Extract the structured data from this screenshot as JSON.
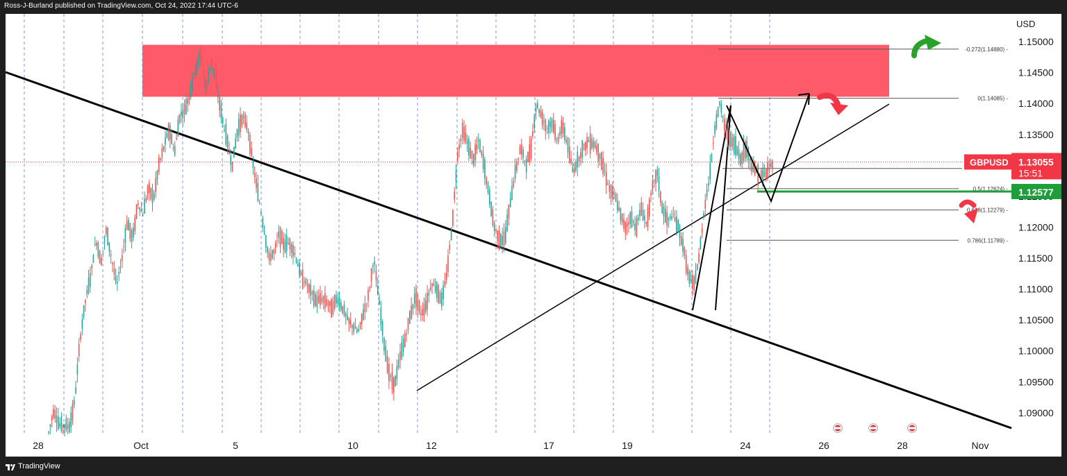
{
  "header": {
    "publisher_line": "Ross-J-Burland published on TradingView.com, Oct 24, 2022 17:44 UTC-6"
  },
  "footer": {
    "brand": "TradingView"
  },
  "chart_data": {
    "type": "candlestick",
    "symbol": "GBPUSD",
    "currency_label": "USD",
    "current_price": "1.13055",
    "countdown": "15:51",
    "support_price": "1.12577",
    "y_ticks": [
      "1.15000",
      "1.14500",
      "1.14000",
      "1.13500",
      "1.13000",
      "1.12500",
      "1.12000",
      "1.11500",
      "1.11000",
      "1.10500",
      "1.10000",
      "1.09500",
      "1.09000"
    ],
    "y_tick_values": [
      1.15,
      1.145,
      1.14,
      1.135,
      1.13,
      1.125,
      1.12,
      1.115,
      1.11,
      1.105,
      1.1,
      1.095,
      1.09
    ],
    "x_ticks": [
      "28",
      "Oct",
      "5",
      "10",
      "12",
      "17",
      "19",
      "24",
      "26",
      "28",
      "Nov"
    ],
    "y_range": [
      1.0865,
      1.1545
    ],
    "fib_levels": [
      {
        "label": "-0.272(1.14880)",
        "value": 1.1488
      },
      {
        "label": "0(1.14085)",
        "value": 1.14085
      },
      {
        "label": "0.5(1.12624)",
        "value": 1.12624
      },
      {
        "label": "0.618(1.12279)",
        "value": 1.12279
      },
      {
        "label": "0.786(1.11789)",
        "value": 1.11789
      }
    ],
    "resistance_zone": [
      1.1411,
      1.1495
    ],
    "price_path": [
      [
        0,
        1.0868
      ],
      [
        0.5,
        1.0905
      ],
      [
        1,
        1.088
      ],
      [
        2,
        1.0878
      ],
      [
        2.5,
        1.092
      ],
      [
        3,
        1.102
      ],
      [
        3.5,
        1.108
      ],
      [
        4,
        1.112
      ],
      [
        4.5,
        1.118
      ],
      [
        5,
        1.1145
      ],
      [
        5.5,
        1.1195
      ],
      [
        6,
        1.115
      ],
      [
        6.5,
        1.1105
      ],
      [
        7,
        1.115
      ],
      [
        7.5,
        1.121
      ],
      [
        8,
        1.118
      ],
      [
        8.5,
        1.124
      ],
      [
        9,
        1.122
      ],
      [
        9.5,
        1.1265
      ],
      [
        10,
        1.1245
      ],
      [
        10.5,
        1.13
      ],
      [
        11,
        1.133
      ],
      [
        11.5,
        1.136
      ],
      [
        12,
        1.132
      ],
      [
        12.5,
        1.138
      ],
      [
        13,
        1.139
      ],
      [
        13.5,
        1.142
      ],
      [
        14,
        1.1455
      ],
      [
        14.5,
        1.148
      ],
      [
        15,
        1.142
      ],
      [
        15.5,
        1.147
      ],
      [
        16,
        1.143
      ],
      [
        16.5,
        1.138
      ],
      [
        17,
        1.134
      ],
      [
        17.5,
        1.13
      ],
      [
        18,
        1.1355
      ],
      [
        18.5,
        1.138
      ],
      [
        19,
        1.136
      ],
      [
        19.5,
        1.13
      ],
      [
        20,
        1.125
      ],
      [
        20.5,
        1.12
      ],
      [
        21,
        1.115
      ],
      [
        21.5,
        1.116
      ],
      [
        22,
        1.119
      ],
      [
        22.5,
        1.117
      ],
      [
        23,
        1.1175
      ],
      [
        23.5,
        1.1155
      ],
      [
        24,
        1.1125
      ],
      [
        24.5,
        1.111
      ],
      [
        25,
        1.1095
      ],
      [
        25.5,
        1.108
      ],
      [
        26,
        1.1085
      ],
      [
        26.5,
        1.108
      ],
      [
        27,
        1.107
      ],
      [
        27.5,
        1.1085
      ],
      [
        28,
        1.107
      ],
      [
        28.5,
        1.105
      ],
      [
        29,
        1.104
      ],
      [
        29.5,
        1.103
      ],
      [
        30,
        1.106
      ],
      [
        30.5,
        1.109
      ],
      [
        31,
        1.115
      ],
      [
        31.5,
        1.108
      ],
      [
        32,
        1.101
      ],
      [
        32.5,
        1.096
      ],
      [
        33,
        1.0945
      ],
      [
        33.5,
        1.099
      ],
      [
        34,
        1.102
      ],
      [
        34.5,
        1.106
      ],
      [
        35,
        1.109
      ],
      [
        35.5,
        1.106
      ],
      [
        36,
        1.1075
      ],
      [
        36.5,
        1.111
      ],
      [
        37,
        1.11
      ],
      [
        37.5,
        1.108
      ],
      [
        38,
        1.113
      ],
      [
        38.5,
        1.121
      ],
      [
        39,
        1.132
      ],
      [
        39.5,
        1.136
      ],
      [
        40,
        1.133
      ],
      [
        40.5,
        1.131
      ],
      [
        41,
        1.134
      ],
      [
        41.5,
        1.13
      ],
      [
        42,
        1.125
      ],
      [
        42.5,
        1.12
      ],
      [
        43,
        1.118
      ],
      [
        43.5,
        1.118
      ],
      [
        44,
        1.124
      ],
      [
        44.5,
        1.129
      ],
      [
        45,
        1.133
      ],
      [
        45.5,
        1.13
      ],
      [
        46,
        1.133
      ],
      [
        46.5,
        1.14
      ],
      [
        47,
        1.138
      ],
      [
        47.5,
        1.136
      ],
      [
        48,
        1.137
      ],
      [
        48.5,
        1.134
      ],
      [
        49,
        1.1365
      ],
      [
        49.5,
        1.133
      ],
      [
        50,
        1.129
      ],
      [
        50.5,
        1.131
      ],
      [
        51,
        1.133
      ],
      [
        51.5,
        1.134
      ],
      [
        52,
        1.1335
      ],
      [
        52.5,
        1.132
      ],
      [
        53,
        1.129
      ],
      [
        53.5,
        1.126
      ],
      [
        54,
        1.125
      ],
      [
        54.5,
        1.122
      ],
      [
        55,
        1.12
      ],
      [
        55.5,
        1.1215
      ],
      [
        56,
        1.12
      ],
      [
        56.5,
        1.123
      ],
      [
        57,
        1.1205
      ],
      [
        57.5,
        1.126
      ],
      [
        58,
        1.129
      ],
      [
        58.5,
        1.123
      ],
      [
        59,
        1.121
      ],
      [
        59.5,
        1.122
      ],
      [
        60,
        1.12
      ],
      [
        60.5,
        1.117
      ],
      [
        61,
        1.112
      ],
      [
        61.5,
        1.1105
      ],
      [
        62,
        1.115
      ],
      [
        62.5,
        1.123
      ],
      [
        63,
        1.128
      ],
      [
        63.5,
        1.136
      ],
      [
        64,
        1.14
      ],
      [
        64.5,
        1.136
      ],
      [
        65,
        1.134
      ],
      [
        65.5,
        1.133
      ],
      [
        66,
        1.131
      ],
      [
        66.5,
        1.133
      ],
      [
        67,
        1.13
      ],
      [
        67.5,
        1.129
      ],
      [
        68,
        1.128
      ],
      [
        68.5,
        1.129
      ],
      [
        69,
        1.1305
      ]
    ],
    "annotations": [
      "trend-lines",
      "forecast-arrows"
    ]
  }
}
